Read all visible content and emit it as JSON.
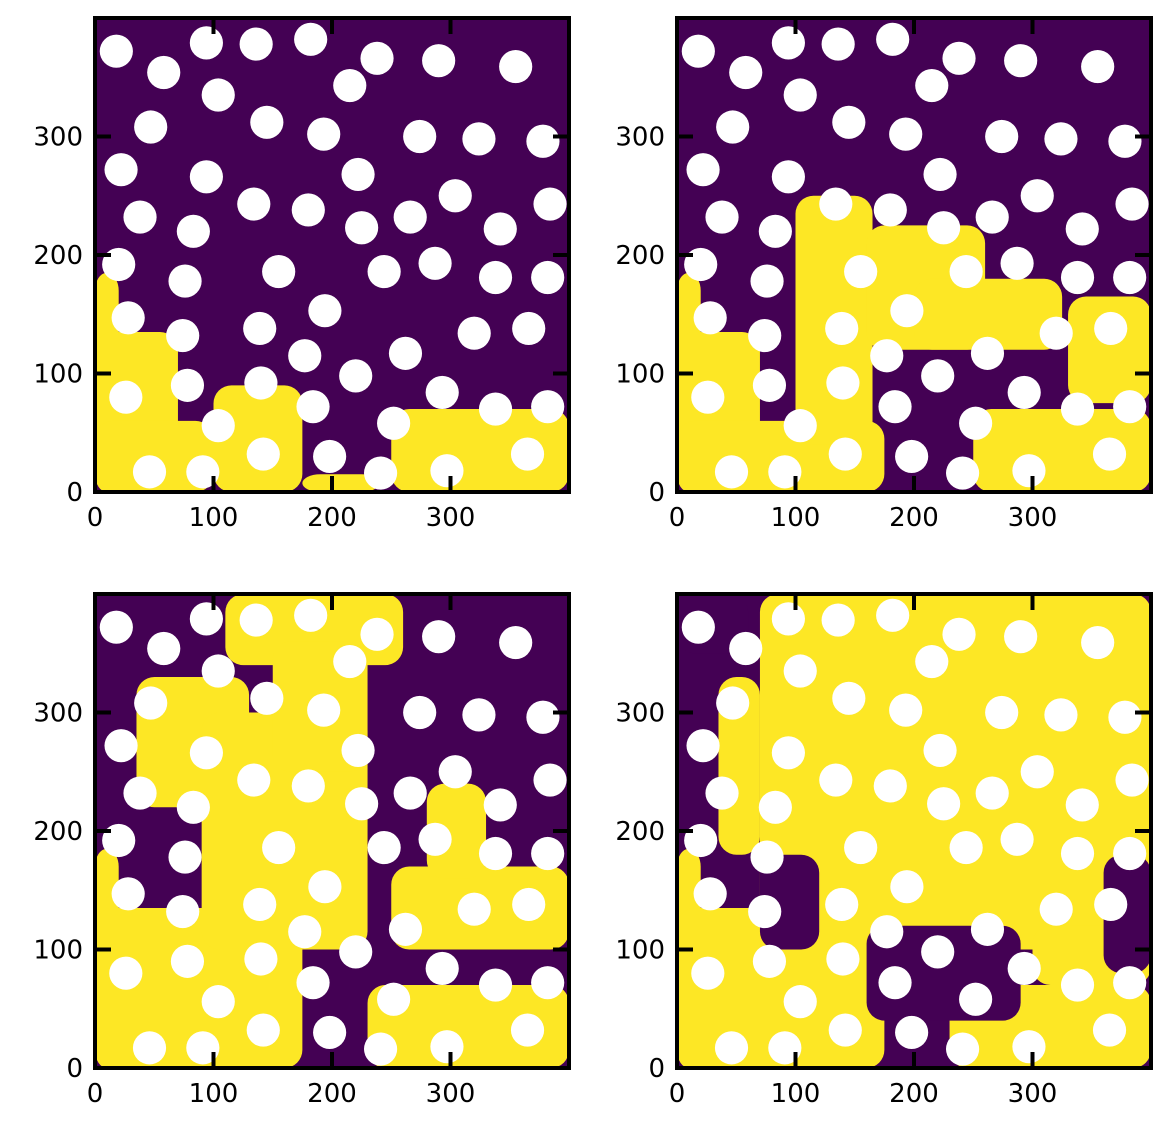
{
  "chart_data": {
    "type": "heatmap",
    "description_key": "binary_occupancy_field_with_circular_obstacles",
    "colors": {
      "empty": "#440154",
      "filled": "#fde725",
      "obstacle": "#ffffff",
      "frame": "#000000"
    },
    "xlim": [
      0,
      400
    ],
    "ylim": [
      0,
      400
    ],
    "xticks": [
      0,
      100,
      200,
      300
    ],
    "yticks": [
      0,
      100,
      200,
      300
    ],
    "xtick_labels": [
      "0",
      "100",
      "200",
      "300"
    ],
    "ytick_labels": [
      "0",
      "100",
      "200",
      "300"
    ],
    "obstacle_radius": 14,
    "obstacles": [
      [
        18,
        372
      ],
      [
        58,
        354
      ],
      [
        94,
        379
      ],
      [
        136,
        378
      ],
      [
        182,
        382
      ],
      [
        238,
        366
      ],
      [
        290,
        364
      ],
      [
        355,
        359
      ],
      [
        104,
        335
      ],
      [
        215,
        343
      ],
      [
        47,
        308
      ],
      [
        145,
        312
      ],
      [
        193,
        302
      ],
      [
        274,
        300
      ],
      [
        324,
        298
      ],
      [
        378,
        296
      ],
      [
        22,
        272
      ],
      [
        94,
        266
      ],
      [
        222,
        268
      ],
      [
        38,
        232
      ],
      [
        83,
        220
      ],
      [
        134,
        243
      ],
      [
        180,
        238
      ],
      [
        225,
        223
      ],
      [
        266,
        232
      ],
      [
        304,
        250
      ],
      [
        342,
        222
      ],
      [
        384,
        243
      ],
      [
        20,
        192
      ],
      [
        155,
        186
      ],
      [
        76,
        178
      ],
      [
        244,
        186
      ],
      [
        287,
        193
      ],
      [
        338,
        181
      ],
      [
        382,
        181
      ],
      [
        28,
        147
      ],
      [
        194,
        153
      ],
      [
        74,
        132
      ],
      [
        139,
        138
      ],
      [
        177,
        115
      ],
      [
        262,
        117
      ],
      [
        320,
        134
      ],
      [
        366,
        138
      ],
      [
        26,
        80
      ],
      [
        78,
        90
      ],
      [
        140,
        92
      ],
      [
        220,
        98
      ],
      [
        184,
        72
      ],
      [
        293,
        84
      ],
      [
        338,
        70
      ],
      [
        382,
        72
      ],
      [
        104,
        56
      ],
      [
        252,
        58
      ],
      [
        46,
        17
      ],
      [
        91,
        17
      ],
      [
        142,
        32
      ],
      [
        198,
        30
      ],
      [
        241,
        16
      ],
      [
        297,
        18
      ],
      [
        365,
        32
      ]
    ],
    "panels": [
      {
        "name": "panel-1",
        "filled_region": [
          {
            "x0": 0,
            "x1": 20,
            "y0": 0,
            "y1": 185
          },
          {
            "x0": 0,
            "x1": 70,
            "y0": 0,
            "y1": 135
          },
          {
            "x0": 0,
            "x1": 100,
            "y0": 0,
            "y1": 60
          },
          {
            "x0": 100,
            "x1": 175,
            "y0": 0,
            "y1": 90
          },
          {
            "x0": 175,
            "x1": 240,
            "y0": 0,
            "y1": 15
          },
          {
            "x0": 250,
            "x1": 400,
            "y0": 0,
            "y1": 70
          }
        ]
      },
      {
        "name": "panel-2",
        "filled_region": [
          {
            "x0": 0,
            "x1": 20,
            "y0": 0,
            "y1": 185
          },
          {
            "x0": 0,
            "x1": 70,
            "y0": 0,
            "y1": 135
          },
          {
            "x0": 0,
            "x1": 175,
            "y0": 0,
            "y1": 60
          },
          {
            "x0": 100,
            "x1": 165,
            "y0": 40,
            "y1": 250
          },
          {
            "x0": 160,
            "x1": 260,
            "y0": 120,
            "y1": 225
          },
          {
            "x0": 200,
            "x1": 325,
            "y0": 120,
            "y1": 180
          },
          {
            "x0": 250,
            "x1": 400,
            "y0": 0,
            "y1": 70
          },
          {
            "x0": 330,
            "x1": 400,
            "y0": 75,
            "y1": 165
          }
        ]
      },
      {
        "name": "panel-3",
        "filled_region": [
          {
            "x0": 0,
            "x1": 20,
            "y0": 0,
            "y1": 185
          },
          {
            "x0": 0,
            "x1": 175,
            "y0": 0,
            "y1": 135
          },
          {
            "x0": 35,
            "x1": 130,
            "y0": 220,
            "y1": 330
          },
          {
            "x0": 90,
            "x1": 230,
            "y0": 100,
            "y1": 300
          },
          {
            "x0": 110,
            "x1": 260,
            "y0": 340,
            "y1": 400
          },
          {
            "x0": 150,
            "x1": 230,
            "y0": 250,
            "y1": 360
          },
          {
            "x0": 230,
            "x1": 400,
            "y0": 0,
            "y1": 70
          },
          {
            "x0": 250,
            "x1": 400,
            "y0": 100,
            "y1": 170
          },
          {
            "x0": 280,
            "x1": 330,
            "y0": 160,
            "y1": 240
          }
        ]
      },
      {
        "name": "panel-4",
        "filled_region": [
          {
            "x0": 0,
            "x1": 20,
            "y0": 0,
            "y1": 185
          },
          {
            "x0": 0,
            "x1": 175,
            "y0": 0,
            "y1": 135
          },
          {
            "x0": 35,
            "x1": 70,
            "y0": 180,
            "y1": 330
          },
          {
            "x0": 70,
            "x1": 400,
            "y0": 100,
            "y1": 400
          },
          {
            "x0": 230,
            "x1": 400,
            "y0": 0,
            "y1": 70
          },
          {
            "x0": 300,
            "x1": 400,
            "y0": 70,
            "y1": 120
          }
        ],
        "unfilled_holes": [
          {
            "x0": 70,
            "x1": 120,
            "y0": 100,
            "y1": 180
          },
          {
            "x0": 160,
            "x1": 290,
            "y0": 40,
            "y1": 120
          },
          {
            "x0": 360,
            "x1": 400,
            "y0": 80,
            "y1": 180
          },
          {
            "x0": 0,
            "x1": 60,
            "y0": 350,
            "y1": 400
          }
        ]
      }
    ]
  }
}
